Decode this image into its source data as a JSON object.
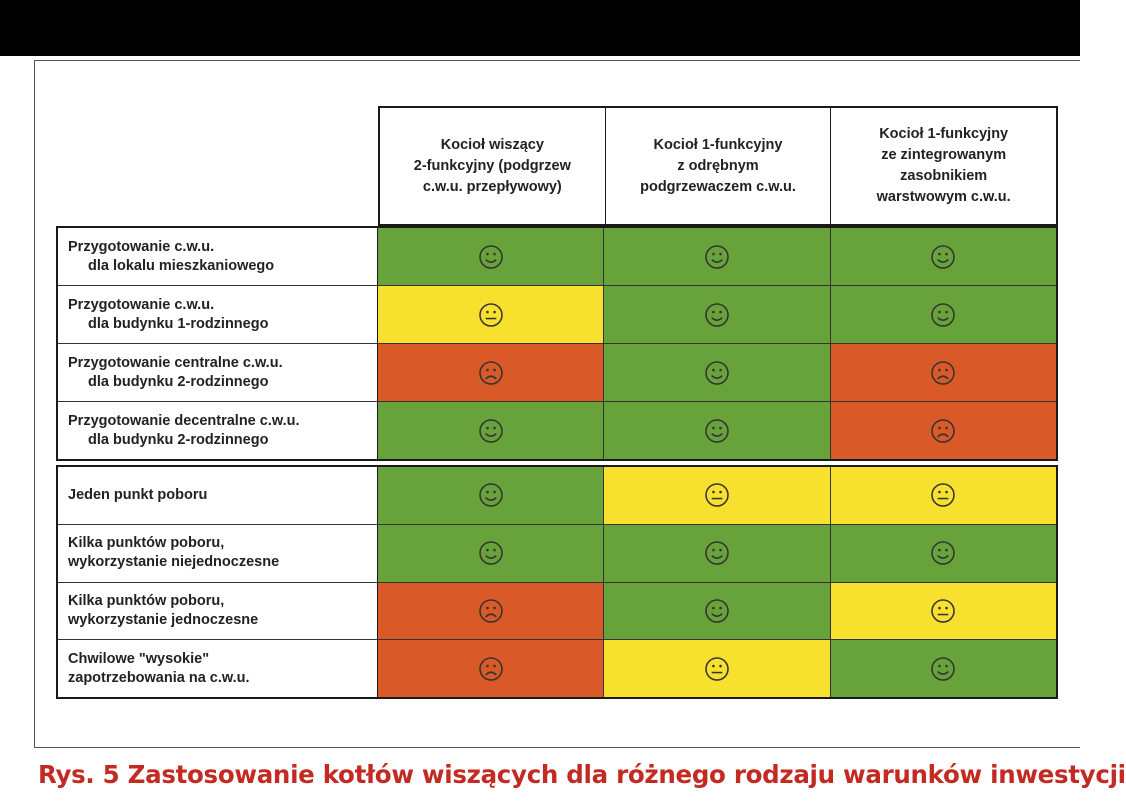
{
  "headers": [
    "Kocioł wiszący\n2-funkcyjny (podgrzew\nc.w.u. przepływowy)",
    "Kocioł 1-funkcyjny\nz odrębnym\npodgrzewaczem c.w.u.",
    "Kocioł 1-funkcyjny\nze zintegrowanym\nzasobnikiem\nwarstwowym c.w.u."
  ],
  "group1": [
    {
      "line1": "Przygotowanie c.w.u.",
      "line2": "dla lokalu mieszkaniowego",
      "ratings": [
        "good",
        "good",
        "good"
      ]
    },
    {
      "line1": "Przygotowanie c.w.u.",
      "line2": "dla budynku 1-rodzinnego",
      "ratings": [
        "neutral",
        "good",
        "good"
      ]
    },
    {
      "line1": "Przygotowanie centralne c.w.u.",
      "line2": "dla budynku 2-rodzinnego",
      "ratings": [
        "bad",
        "good",
        "bad"
      ]
    },
    {
      "line1": "Przygotowanie decentralne c.w.u.",
      "line2": "dla budynku 2-rodzinnego",
      "ratings": [
        "good",
        "good",
        "bad"
      ]
    }
  ],
  "group2": [
    {
      "line1": "Jeden punkt poboru",
      "line2": "",
      "ratings": [
        "good",
        "neutral",
        "neutral"
      ]
    },
    {
      "line1": "Kilka punktów poboru,",
      "line2": "wykorzystanie niejednoczesne",
      "ratings": [
        "good",
        "good",
        "good"
      ]
    },
    {
      "line1": "Kilka punktów poboru,",
      "line2": "wykorzystanie jednoczesne",
      "ratings": [
        "bad",
        "good",
        "neutral"
      ]
    },
    {
      "line1": "Chwilowe \"wysokie\"",
      "line2": "zapotrzebowania na c.w.u.",
      "ratings": [
        "bad",
        "neutral",
        "good"
      ]
    }
  ],
  "caption": "Rys. 5 Zastosowanie kotłów wiszących dla różnego rodzaju warunków inwestycji",
  "colors": {
    "good": "#68a23a",
    "neutral": "#f7e02e",
    "bad": "#d95a28",
    "caption": "#c22a22"
  }
}
